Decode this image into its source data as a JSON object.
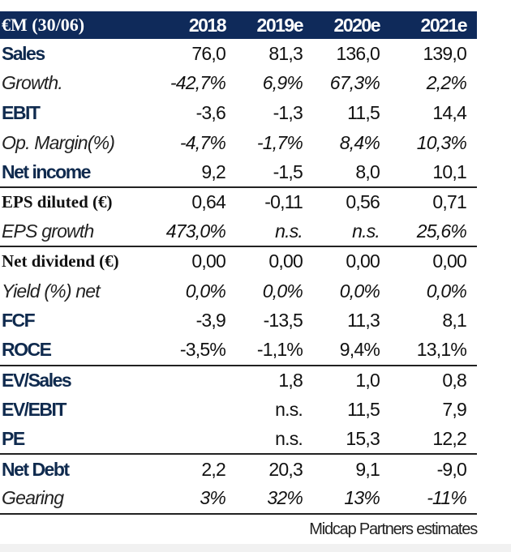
{
  "header": {
    "label": "€M (30/06)",
    "years": [
      "2018",
      "2019e",
      "2020e",
      "2021e"
    ]
  },
  "rows": [
    {
      "label": "Sales",
      "style": "bold",
      "values": [
        "76,0",
        "81,3",
        "136,0",
        "139,0"
      ]
    },
    {
      "label": "Growth.",
      "style": "ital",
      "values": [
        "-42,7%",
        "6,9%",
        "67,3%",
        "2,2%"
      ]
    },
    {
      "label": "EBIT",
      "style": "bold",
      "values": [
        "-3,6",
        "-1,3",
        "11,5",
        "14,4"
      ]
    },
    {
      "label": "Op. Margin(%)",
      "style": "ital",
      "values": [
        "-4,7%",
        "-1,7%",
        "8,4%",
        "10,3%"
      ]
    },
    {
      "label": "Net income",
      "style": "bold sep",
      "values": [
        "9,2",
        "-1,5",
        "8,0",
        "10,1"
      ]
    },
    {
      "label": "EPS diluted (€)",
      "style": "serif",
      "values": [
        "0,64",
        "-0,11",
        "0,56",
        "0,71"
      ]
    },
    {
      "label": "EPS growth",
      "style": "ital sep",
      "values": [
        "473,0%",
        "n.s.",
        "n.s.",
        "25,6%"
      ]
    },
    {
      "label": "Net dividend (€)",
      "style": "serif",
      "values": [
        "0,00",
        "0,00",
        "0,00",
        "0,00"
      ]
    },
    {
      "label": "Yield (%) net",
      "style": "ital",
      "values": [
        "0,0%",
        "0,0%",
        "0,0%",
        "0,0%"
      ]
    },
    {
      "label": "FCF",
      "style": "bold",
      "values": [
        "-3,9",
        "-13,5",
        "11,3",
        "8,1"
      ]
    },
    {
      "label": "ROCE",
      "style": "bold sep",
      "values": [
        "-3,5%",
        "-1,1%",
        "9,4%",
        "13,1%"
      ]
    },
    {
      "label": "EV/Sales",
      "style": "bold",
      "values": [
        "",
        "1,8",
        "1,0",
        "0,8"
      ]
    },
    {
      "label": "EV/EBIT",
      "style": "bold",
      "values": [
        "",
        "n.s.",
        "11,5",
        "7,9"
      ]
    },
    {
      "label": "PE",
      "style": "bold sep",
      "values": [
        "",
        "n.s.",
        "15,3",
        "12,2"
      ]
    },
    {
      "label": "Net Debt",
      "style": "bold",
      "values": [
        "2,2",
        "20,3",
        "9,1",
        "-9,0"
      ]
    },
    {
      "label": "Gearing",
      "style": "ital sep",
      "values": [
        "3%",
        "32%",
        "13%",
        "-11%"
      ]
    }
  ],
  "footer": "Midcap Partners estimates"
}
